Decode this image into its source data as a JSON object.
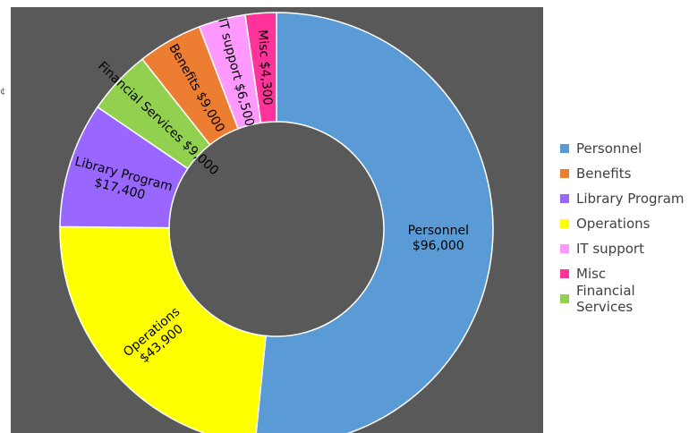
{
  "chart_data": {
    "type": "donut",
    "title": "",
    "series": [
      {
        "label": "Personnel",
        "value": 96000,
        "text": "$96,000",
        "color": "#5b9bd5"
      },
      {
        "label": "Operations",
        "value": 43900,
        "text": "$43,900",
        "color": "#ffff00"
      },
      {
        "label": "Library Program",
        "value": 17400,
        "text": "$17,400",
        "color": "#9966ff"
      },
      {
        "label": "Financial Services",
        "value": 9000,
        "text": "$9,000",
        "color": "#92d050"
      },
      {
        "label": "Benefits",
        "value": 9000,
        "text": "$9,000",
        "color": "#ed7d31"
      },
      {
        "label": "IT support",
        "value": 6500,
        "text": "$6,500",
        "color": "#ff99ff"
      },
      {
        "label": "Misc",
        "value": 4300,
        "text": "$4,300",
        "color": "#ff3399"
      }
    ],
    "legend_order": [
      "Personnel",
      "Benefits",
      "Library Program",
      "Operations",
      "IT support",
      "Misc",
      "Financial Services"
    ],
    "legend_position": "right",
    "background_color": "#595959",
    "slice_border_color": "#ffffff"
  },
  "edge_mark": "¢"
}
